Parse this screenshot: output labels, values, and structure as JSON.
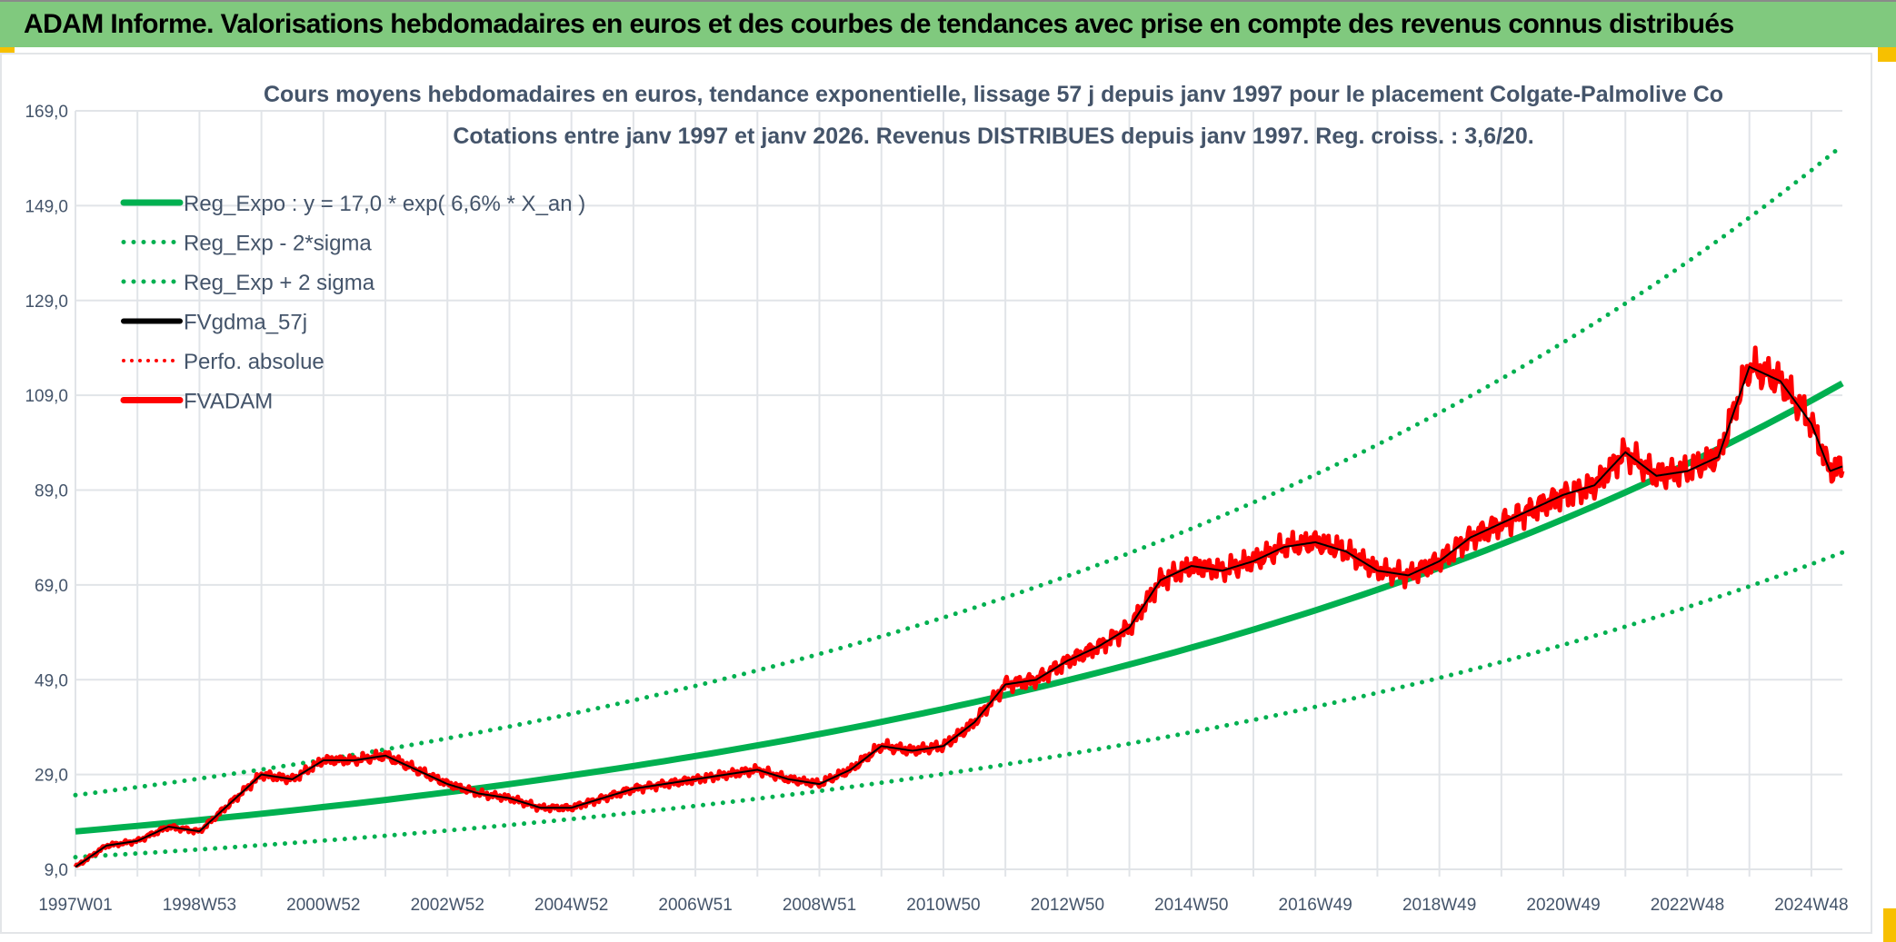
{
  "header": {
    "title": "ADAM Informe. Valorisations hebdomadaires en euros et des courbes de tendances avec prise en compte des revenus connus distribués"
  },
  "colors": {
    "header_bg": "#80c97e",
    "reg": "#00b050",
    "smooth": "#000000",
    "price": "#ff0000",
    "text": "#44546a"
  },
  "chart_data": {
    "type": "line",
    "title": "Cours moyens hebdomadaires en euros, tendance exponentielle, lissage 57 j depuis janv 1997 pour le placement Colgate-Palmolive Co",
    "subtitle": "Cotations entre janv 1997 et janv 2026. Revenus DISTRIBUES depuis janv 1997. Reg. croiss. : 3,6/20.",
    "xlabel": "",
    "ylabel": "",
    "xlim": [
      1997.0,
      2025.5
    ],
    "ylim": [
      9,
      169
    ],
    "yticks": [
      "9,0",
      "29,0",
      "49,0",
      "69,0",
      "89,0",
      "109,0",
      "129,0",
      "149,0",
      "169,0"
    ],
    "xticks": [
      "1997W01",
      "1998W53",
      "2000W52",
      "2002W52",
      "2004W52",
      "2006W51",
      "2008W51",
      "2010W50",
      "2012W50",
      "2014W50",
      "2016W49",
      "2018W49",
      "2020W49",
      "2022W48",
      "2024W48"
    ],
    "grid": true,
    "legend_position": "top-left",
    "regression": {
      "a": 17.0,
      "rate": 0.066,
      "minus_2sigma_factor": 0.68,
      "plus_2sigma_factor": 1.45
    },
    "x": [
      1997.0,
      1997.5,
      1998.0,
      1998.5,
      1999.0,
      1999.5,
      2000.0,
      2000.5,
      2001.0,
      2001.5,
      2002.0,
      2002.5,
      2003.0,
      2003.5,
      2004.0,
      2004.5,
      2005.0,
      2005.5,
      2006.0,
      2006.5,
      2007.0,
      2007.5,
      2008.0,
      2008.5,
      2009.0,
      2009.5,
      2010.0,
      2010.5,
      2011.0,
      2011.5,
      2012.0,
      2012.5,
      2013.0,
      2013.5,
      2014.0,
      2014.5,
      2015.0,
      2015.5,
      2016.0,
      2016.5,
      2017.0,
      2017.5,
      2018.0,
      2018.5,
      2019.0,
      2019.5,
      2020.0,
      2020.5,
      2021.0,
      2021.5,
      2022.0,
      2022.5,
      2023.0,
      2023.5,
      2024.0,
      2024.5,
      2025.0,
      2025.3,
      2025.5
    ],
    "series": [
      {
        "name": "Reg_Expo : y = 17,0 * exp( 6,6% *  X_an )",
        "style": "solid-green"
      },
      {
        "name": "Reg_Exp - 2*sigma",
        "style": "dotted-green"
      },
      {
        "name": "Reg_Exp + 2 sigma",
        "style": "dotted-green"
      },
      {
        "name": "FVgdma_57j",
        "style": "solid-black",
        "values": [
          9.5,
          14,
          15,
          18,
          17,
          23,
          29,
          28,
          32,
          32,
          33,
          30,
          27,
          25,
          24,
          22,
          22,
          24,
          26,
          27,
          28,
          29,
          30,
          28,
          27,
          30,
          35,
          34,
          35,
          40,
          48,
          49,
          53,
          56,
          60,
          70,
          73,
          72,
          74,
          77,
          78,
          76,
          72,
          71,
          74,
          79,
          82,
          85,
          88,
          90,
          97,
          92,
          93,
          96,
          115,
          112,
          103,
          93,
          94
        ]
      },
      {
        "name": "Perfo. absolue",
        "style": "dotted-red"
      },
      {
        "name": "FVADAM",
        "style": "solid-red",
        "values": [
          9.5,
          14,
          15,
          18,
          17,
          23,
          29,
          28,
          32,
          32,
          33,
          30,
          27,
          25,
          24,
          22,
          22,
          24,
          26,
          27,
          28,
          29,
          30,
          28,
          27,
          30,
          35,
          34,
          35,
          40,
          48,
          49,
          53,
          56,
          60,
          70,
          73,
          72,
          74,
          77,
          78,
          76,
          72,
          71,
          74,
          79,
          82,
          85,
          88,
          90,
          97,
          92,
          93,
          96,
          115,
          112,
          103,
          93,
          94
        ]
      }
    ]
  }
}
